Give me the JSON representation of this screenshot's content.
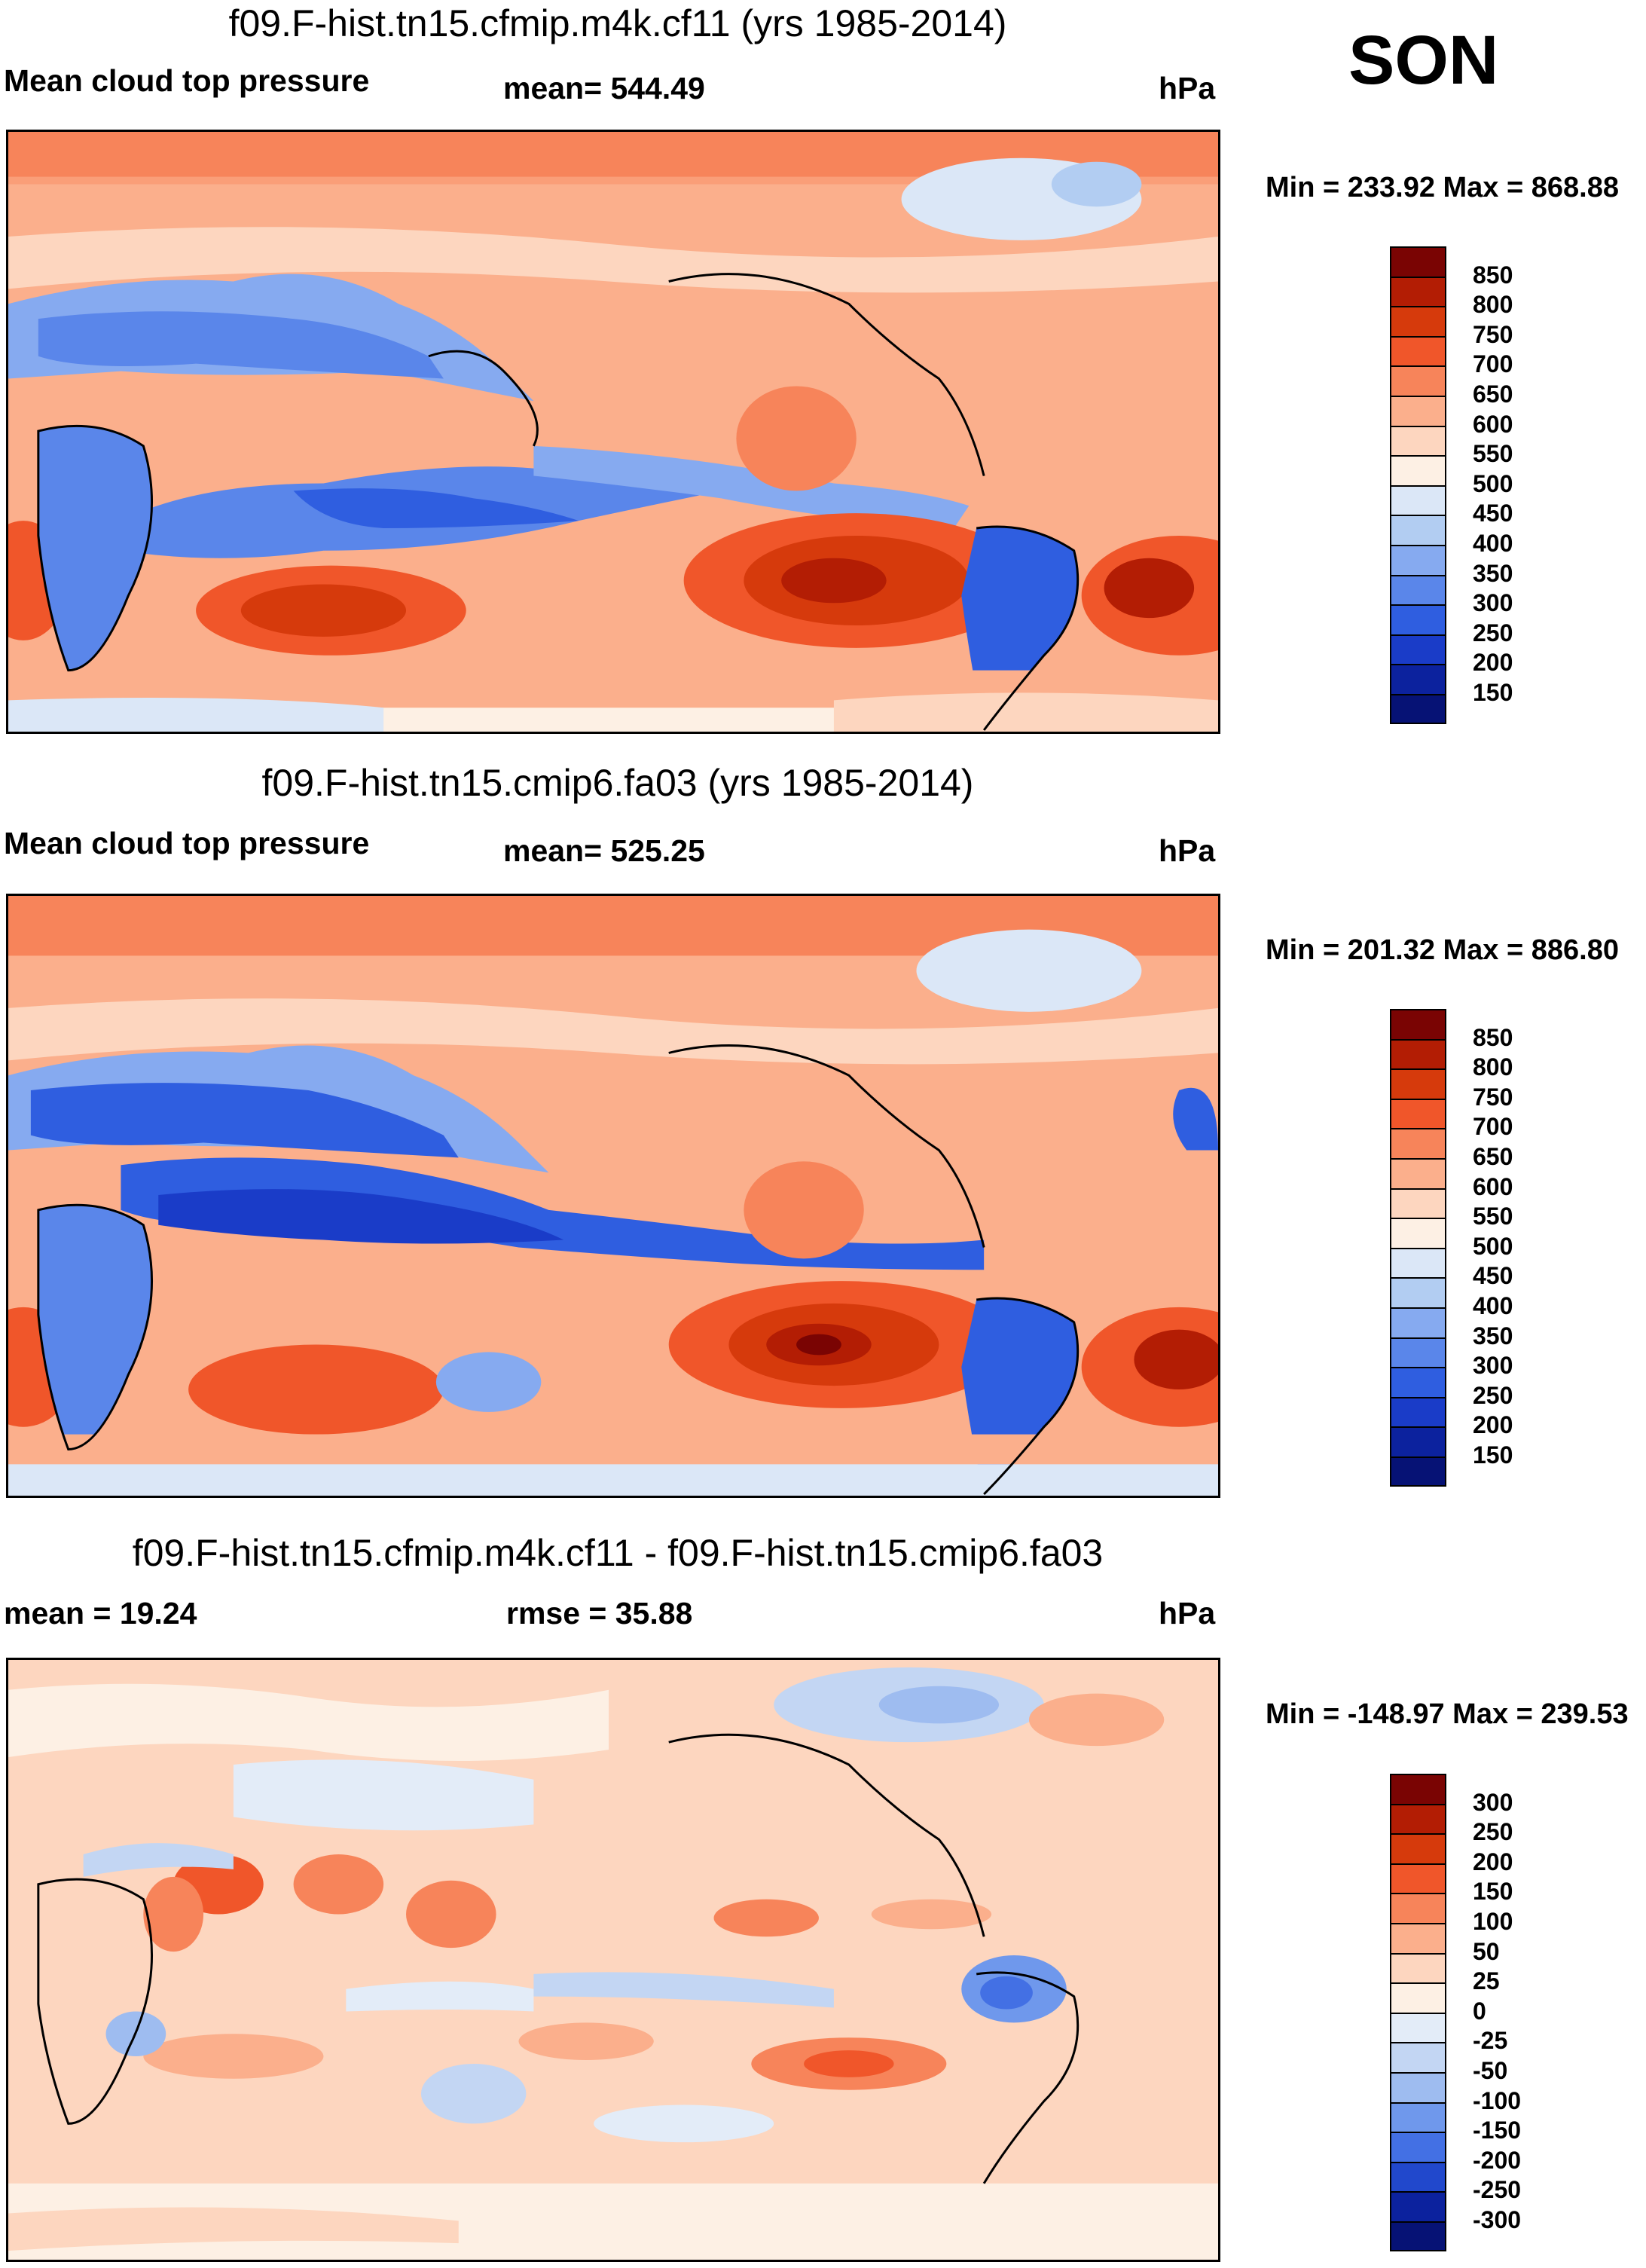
{
  "season": "SON",
  "panels": [
    {
      "title": "f09.F-hist.tn15.cfmip.m4k.cf11 (yrs 1985-2014)",
      "left_label": "Mean cloud top pressure",
      "center_label": "mean= 544.49",
      "units": "hPa",
      "minmax": "Min = 233.92 Max = 868.88",
      "map_type": "abs",
      "colorbar": [
        "850",
        "800",
        "750",
        "700",
        "650",
        "600",
        "550",
        "500",
        "450",
        "400",
        "350",
        "300",
        "250",
        "200",
        "150"
      ]
    },
    {
      "title": "f09.F-hist.tn15.cmip6.fa03 (yrs 1985-2014)",
      "left_label": "Mean cloud top pressure",
      "center_label": "mean= 525.25",
      "units": "hPa",
      "minmax": "Min = 201.32 Max = 886.80",
      "map_type": "abs",
      "colorbar": [
        "850",
        "800",
        "750",
        "700",
        "650",
        "600",
        "550",
        "500",
        "450",
        "400",
        "350",
        "300",
        "250",
        "200",
        "150"
      ]
    },
    {
      "title": "f09.F-hist.tn15.cfmip.m4k.cf11 - f09.F-hist.tn15.cmip6.fa03",
      "left_label": "mean =  19.24",
      "center_label": "rmse =  35.88",
      "units": "hPa",
      "minmax": "Min = -148.97 Max = 239.53",
      "map_type": "diff",
      "colorbar": [
        "300",
        "250",
        "200",
        "150",
        "100",
        "50",
        "25",
        "0",
        "-25",
        "-50",
        "-100",
        "-150",
        "-200",
        "-250",
        "-300"
      ]
    }
  ],
  "colors": {
    "abs_scale": [
      "#7a0403",
      "#b31d04",
      "#d63a0c",
      "#f0562a",
      "#f7845a",
      "#fbaf8c",
      "#fdd6bf",
      "#fdf0e4",
      "#dbe7f7",
      "#b2cdf2",
      "#86aaf0",
      "#5a86ea",
      "#2f5ee0",
      "#1a3cc8",
      "#0c229e",
      "#061275"
    ],
    "diff_scale": [
      "#7a0403",
      "#b31d04",
      "#d63a0c",
      "#f0562a",
      "#f7845a",
      "#fbaf8c",
      "#fdd6bf",
      "#fdf0e4",
      "#e3ecf8",
      "#c3d6f3",
      "#9ebcf0",
      "#6f98ec",
      "#4370e4",
      "#2148cc",
      "#0c229e",
      "#061275"
    ]
  }
}
